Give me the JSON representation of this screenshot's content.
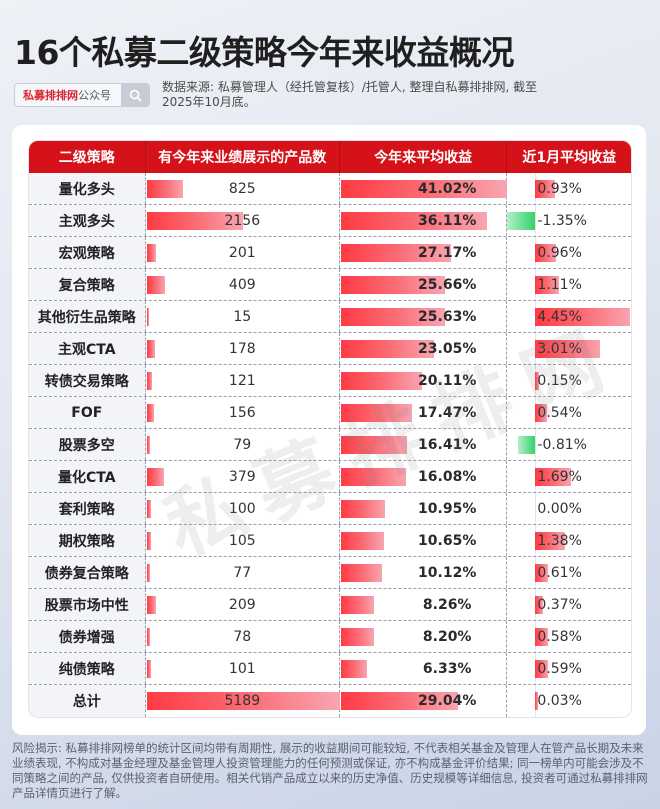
{
  "title": "16个私募二级策略今年来收益概况",
  "search": {
    "brand": "私募排排网",
    "suffix": "公众号",
    "icon": "search-icon"
  },
  "source_note": "数据来源: 私募管理人（经托管复核）/托管人, 整理自私募排排网, 截至2025年10月底。",
  "watermark": "私募排排网",
  "table": {
    "headers": [
      "二级策略",
      "有今年来业绩展示的产品数",
      "今年来平均收益",
      "近1月平均收益"
    ],
    "rows": [
      {
        "strategy": "量化多头",
        "count": "825",
        "ytd": "41.02%",
        "m1": "0.93%"
      },
      {
        "strategy": "主观多头",
        "count": "2156",
        "ytd": "36.11%",
        "m1": "-1.35%"
      },
      {
        "strategy": "宏观策略",
        "count": "201",
        "ytd": "27.17%",
        "m1": "0.96%"
      },
      {
        "strategy": "复合策略",
        "count": "409",
        "ytd": "25.66%",
        "m1": "1.11%"
      },
      {
        "strategy": "其他衍生品策略",
        "count": "15",
        "ytd": "25.63%",
        "m1": "4.45%"
      },
      {
        "strategy": "主观CTA",
        "count": "178",
        "ytd": "23.05%",
        "m1": "3.01%"
      },
      {
        "strategy": "转债交易策略",
        "count": "121",
        "ytd": "20.11%",
        "m1": "0.15%"
      },
      {
        "strategy": "FOF",
        "count": "156",
        "ytd": "17.47%",
        "m1": "0.54%"
      },
      {
        "strategy": "股票多空",
        "count": "79",
        "ytd": "16.41%",
        "m1": "-0.81%"
      },
      {
        "strategy": "量化CTA",
        "count": "379",
        "ytd": "16.08%",
        "m1": "1.69%"
      },
      {
        "strategy": "套利策略",
        "count": "100",
        "ytd": "10.95%",
        "m1": "0.00%"
      },
      {
        "strategy": "期权策略",
        "count": "105",
        "ytd": "10.65%",
        "m1": "1.38%"
      },
      {
        "strategy": "债券复合策略",
        "count": "77",
        "ytd": "10.12%",
        "m1": "0.61%"
      },
      {
        "strategy": "股票市场中性",
        "count": "209",
        "ytd": "8.26%",
        "m1": "0.37%"
      },
      {
        "strategy": "债券增强",
        "count": "78",
        "ytd": "8.20%",
        "m1": "0.58%"
      },
      {
        "strategy": "纯债策略",
        "count": "101",
        "ytd": "6.33%",
        "m1": "0.59%"
      },
      {
        "strategy": "总计",
        "count": "5189",
        "ytd": "29.04%",
        "m1": "0.03%"
      }
    ]
  },
  "disclaimer": "风险揭示: 私募排排网榜单的统计区间均带有周期性, 展示的收益期间可能较短, 不代表相关基金及管理人在管产品长期及未来业绩表现, 不构成对基金经理及基金管理人投资管理能力的任何预测或保证, 亦不构成基金评价结果; 同一榜单内可能会涉及不同策略之间的产品, 仅供投资者自研使用。相关代销产品成立以来的历史净值、历史规模等详细信息, 投资者可通过私募排排网产品详情页进行了解。",
  "colors": {
    "header_red": "#d5121a",
    "bar_red": "#ff3a44",
    "bar_green": "#33d26a"
  },
  "chart_data": {
    "type": "table",
    "title": "16个私募二级策略今年来收益概况",
    "columns": [
      "二级策略",
      "有今年来业绩展示的产品数",
      "今年来平均收益(%)",
      "近1月平均收益(%)"
    ],
    "categories": [
      "量化多头",
      "主观多头",
      "宏观策略",
      "复合策略",
      "其他衍生品策略",
      "主观CTA",
      "转债交易策略",
      "FOF",
      "股票多空",
      "量化CTA",
      "套利策略",
      "期权策略",
      "债券复合策略",
      "股票市场中性",
      "债券增强",
      "纯债策略",
      "总计"
    ],
    "series": [
      {
        "name": "有今年来业绩展示的产品数",
        "values": [
          825,
          2156,
          201,
          409,
          15,
          178,
          121,
          156,
          79,
          379,
          100,
          105,
          77,
          209,
          78,
          101,
          5189
        ]
      },
      {
        "name": "今年来平均收益",
        "values": [
          41.02,
          36.11,
          27.17,
          25.66,
          25.63,
          23.05,
          20.11,
          17.47,
          16.41,
          16.08,
          10.95,
          10.65,
          10.12,
          8.26,
          8.2,
          6.33,
          29.04
        ]
      },
      {
        "name": "近1月平均收益",
        "values": [
          0.93,
          -1.35,
          0.96,
          1.11,
          4.45,
          3.01,
          0.15,
          0.54,
          -0.81,
          1.69,
          0.0,
          1.38,
          0.61,
          0.37,
          0.58,
          0.59,
          0.03
        ]
      }
    ],
    "notes": "In-cell data bars: red for positive values, green for negative values (近1月 column)."
  }
}
